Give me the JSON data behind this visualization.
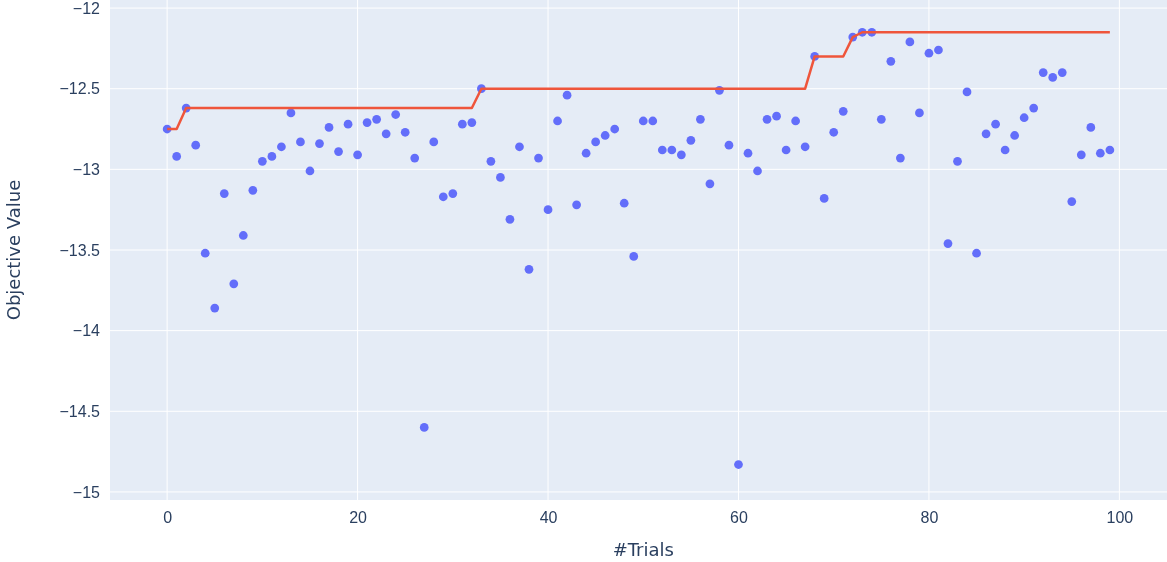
{
  "chart_data": {
    "type": "scatter",
    "xlabel": "#Trials",
    "ylabel": "Objective Value",
    "xlim": [
      -6,
      105
    ],
    "ylim": [
      -15.05,
      -11.95
    ],
    "xticks": [
      0,
      20,
      40,
      60,
      80,
      100
    ],
    "yticks": [
      {
        "value": -15,
        "label": "−15"
      },
      {
        "value": -14.5,
        "label": "−14.5"
      },
      {
        "value": -14,
        "label": "−14"
      },
      {
        "value": -13.5,
        "label": "−13.5"
      },
      {
        "value": -13,
        "label": "−13"
      },
      {
        "value": -12.5,
        "label": "−12.5"
      },
      {
        "value": -12,
        "label": "−12"
      }
    ],
    "grid": true,
    "marker": "circle",
    "series": [
      {
        "color": "#636efa",
        "x": [
          0,
          1,
          2,
          3,
          4,
          5,
          6,
          7,
          8,
          9,
          10,
          11,
          12,
          13,
          14,
          15,
          16,
          17,
          18,
          19,
          20,
          21,
          22,
          23,
          24,
          25,
          26,
          27,
          28,
          29,
          30,
          31,
          32,
          33,
          34,
          35,
          36,
          37,
          38,
          39,
          40,
          41,
          42,
          43,
          44,
          45,
          46,
          47,
          48,
          49,
          50,
          51,
          52,
          53,
          54,
          55,
          56,
          57,
          58,
          59,
          60,
          61,
          62,
          63,
          64,
          65,
          66,
          67,
          68,
          69,
          70,
          71,
          72,
          73,
          74,
          75,
          76,
          77,
          78,
          79,
          80,
          81,
          82,
          83,
          84,
          85,
          86,
          87,
          88,
          89,
          90,
          91,
          92,
          93,
          94,
          95,
          96,
          97,
          98,
          99
        ],
        "values": [
          -12.75,
          -12.92,
          -12.62,
          -12.85,
          -13.52,
          -13.86,
          -13.15,
          -13.71,
          -13.41,
          -13.13,
          -12.95,
          -12.92,
          -12.86,
          -12.65,
          -12.83,
          -13.01,
          -12.84,
          -12.74,
          -12.89,
          -12.72,
          -12.91,
          -12.71,
          -12.69,
          -12.78,
          -12.66,
          -12.77,
          -12.93,
          -14.6,
          -12.83,
          -13.17,
          -13.15,
          -12.72,
          -12.71,
          -12.5,
          -12.95,
          -13.05,
          -13.31,
          -12.86,
          -13.62,
          -12.93,
          -13.25,
          -12.7,
          -12.54,
          -13.22,
          -12.9,
          -12.83,
          -12.79,
          -12.75,
          -13.21,
          -13.54,
          -12.7,
          -12.7,
          -12.88,
          -12.88,
          -12.91,
          -12.82,
          -12.69,
          -13.09,
          -12.51,
          -12.85,
          -14.83,
          -12.9,
          -13.01,
          -12.69,
          -12.67,
          -12.88,
          -12.7,
          -12.86,
          -12.3,
          -13.18,
          -12.77,
          -12.64,
          -12.18,
          -12.15,
          -12.15,
          -12.69,
          -12.33,
          -12.93,
          -12.21,
          -12.65,
          -12.28,
          -12.26,
          -13.46,
          -12.95,
          -12.52,
          -13.52,
          -12.78,
          -12.72,
          -12.88,
          -12.79,
          -12.68,
          -12.62,
          -12.4,
          -12.43,
          -12.4,
          -13.2,
          -12.91,
          -12.74,
          -12.9,
          -12.88
        ]
      },
      {
        "type": "line",
        "color": "#ef553b",
        "marker": "none",
        "line_style": "solid",
        "x": [
          0,
          1,
          2,
          32,
          33,
          67,
          68,
          71,
          72,
          73,
          99
        ],
        "values": [
          -12.75,
          -12.75,
          -12.62,
          -12.62,
          -12.5,
          -12.5,
          -12.3,
          -12.3,
          -12.18,
          -12.15,
          -12.15
        ]
      }
    ]
  }
}
